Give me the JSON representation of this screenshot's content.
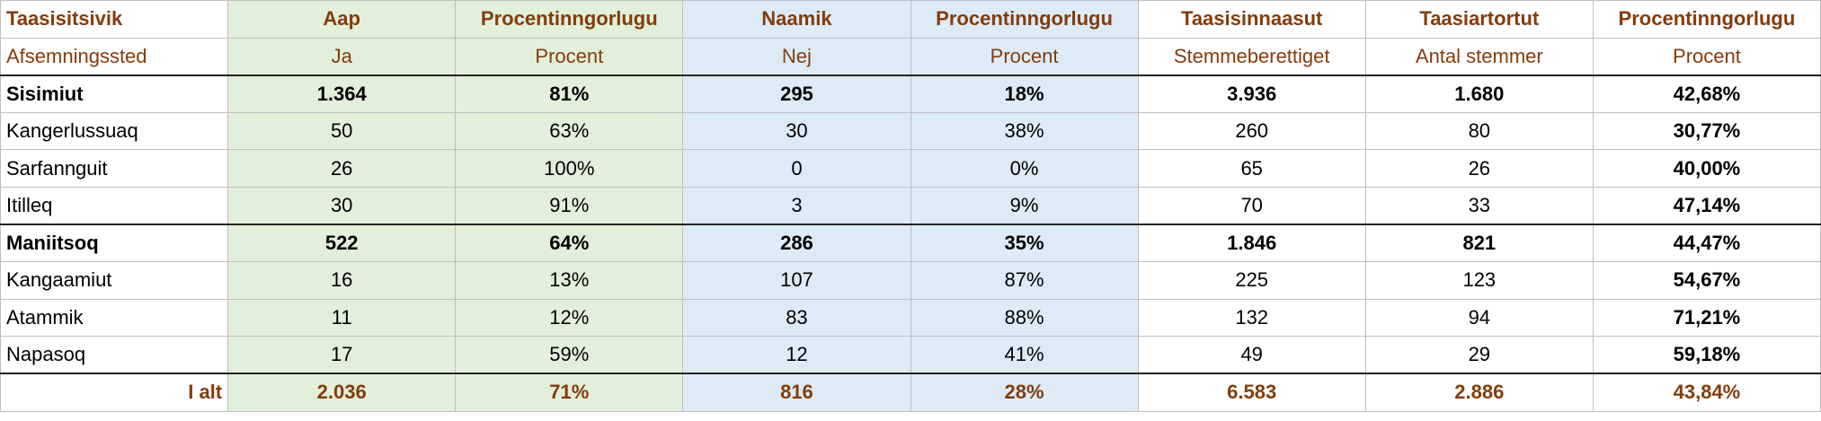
{
  "table": {
    "header": [
      [
        "Taasisitsivik",
        "Aap",
        "Procentinngorlugu",
        "Naamik",
        "Procentinngorlugu",
        "Taasisinnaasut",
        "Taasiartortut",
        "Procentinngorlugu"
      ],
      [
        "Afsemningssted",
        "Ja",
        "Procent",
        "Nej",
        "Procent",
        "Stemmeberettiget",
        "Antal stemmer",
        "Procent"
      ]
    ],
    "rows": [
      [
        "Sisimiut",
        "1.364",
        "81%",
        "295",
        "18%",
        "3.936",
        "1.680",
        "42,68%"
      ],
      [
        "Kangerlussuaq",
        "50",
        "63%",
        "30",
        "38%",
        "260",
        "80",
        "30,77%"
      ],
      [
        "Sarfannguit",
        "26",
        "100%",
        "0",
        "0%",
        "65",
        "26",
        "40,00%"
      ],
      [
        "Itilleq",
        "30",
        "91%",
        "3",
        "9%",
        "70",
        "33",
        "47,14%"
      ],
      [
        "Maniitsoq",
        "522",
        "64%",
        "286",
        "35%",
        "1.846",
        "821",
        "44,47%"
      ],
      [
        "Kangaamiut",
        "16",
        "13%",
        "107",
        "87%",
        "225",
        "123",
        "54,67%"
      ],
      [
        "Atammik",
        "11",
        "12%",
        "83",
        "88%",
        "132",
        "94",
        "71,21%"
      ],
      [
        "Napasoq",
        "17",
        "59%",
        "12",
        "41%",
        "49",
        "29",
        "59,18%"
      ]
    ],
    "total": [
      "I alt",
      "2.036",
      "71%",
      "816",
      "28%",
      "6.583",
      "2.886",
      "43,84%"
    ]
  }
}
